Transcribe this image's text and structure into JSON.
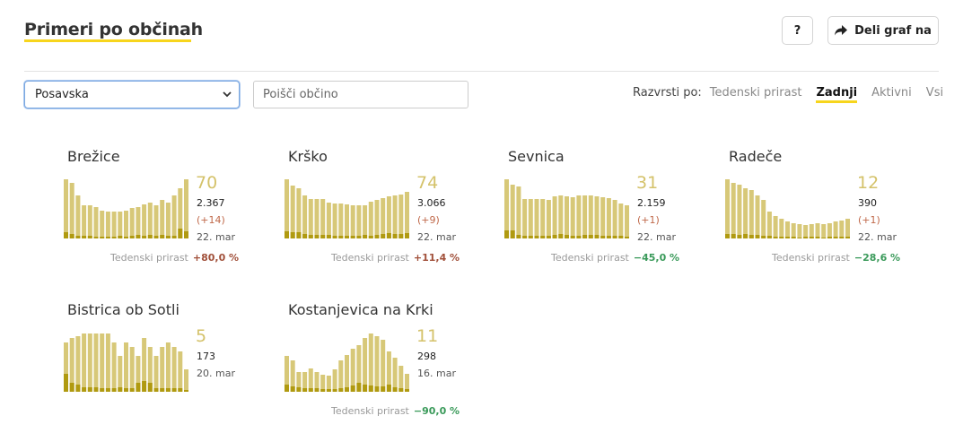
{
  "header": {
    "title": "Primeri po občinah",
    "help_label": "?",
    "share_label": "Deli graf na"
  },
  "filters": {
    "region_selected": "Posavska",
    "search_placeholder": "Poišči občino"
  },
  "sort": {
    "label": "Razvrsti po:",
    "options": [
      "Tedenski prirast",
      "Zadnji",
      "Aktivni",
      "Vsi"
    ],
    "active": "Zadnji"
  },
  "colors": {
    "bar": "#d7c878",
    "bar_dark": "#b09a10",
    "accent": "#f7d51d",
    "value": "#d4c26a",
    "up": "#a1503a",
    "down": "#3a9a5a"
  },
  "growth_label": "Tedenski prirast",
  "municipalities": [
    {
      "name": "Brežice",
      "value": "70",
      "total": "2.367",
      "delta": "(+14)",
      "date": "22. mar",
      "growth": "+80,0 %",
      "trend": "up",
      "bars": [
        66,
        62,
        48,
        37,
        37,
        35,
        31,
        30,
        30,
        30,
        31,
        34,
        35,
        38,
        40,
        37,
        43,
        40,
        48,
        56,
        66
      ],
      "dark": [
        7,
        5,
        3,
        3,
        3,
        2,
        2,
        2,
        2,
        3,
        2,
        3,
        4,
        3,
        4,
        3,
        4,
        3,
        3,
        11,
        8
      ]
    },
    {
      "name": "Krško",
      "value": "74",
      "total": "3.066",
      "delta": "(+9)",
      "date": "22. mar",
      "growth": "+11,4 %",
      "trend": "up",
      "bars": [
        66,
        59,
        56,
        48,
        44,
        44,
        44,
        40,
        39,
        39,
        38,
        37,
        37,
        37,
        41,
        43,
        45,
        47,
        48,
        49,
        52
      ],
      "dark": [
        8,
        7,
        7,
        5,
        4,
        4,
        4,
        4,
        3,
        3,
        3,
        3,
        3,
        4,
        3,
        4,
        5,
        6,
        5,
        5,
        6
      ]
    },
    {
      "name": "Sevnica",
      "value": "31",
      "total": "2.159",
      "delta": "(+1)",
      "date": "22. mar",
      "growth": "−45,0 %",
      "trend": "down",
      "bars": [
        66,
        60,
        58,
        44,
        44,
        44,
        44,
        43,
        47,
        48,
        47,
        46,
        48,
        48,
        48,
        47,
        46,
        45,
        43,
        39,
        37
      ],
      "dark": [
        9,
        9,
        4,
        3,
        3,
        3,
        3,
        3,
        4,
        5,
        4,
        3,
        3,
        4,
        4,
        4,
        3,
        3,
        3,
        3,
        2
      ]
    },
    {
      "name": "Radeče",
      "value": "12",
      "total": "390",
      "delta": "(+1)",
      "date": "22. mar",
      "growth": "−28,6 %",
      "trend": "down",
      "bars": [
        66,
        62,
        60,
        56,
        54,
        48,
        43,
        30,
        25,
        22,
        19,
        17,
        16,
        15,
        16,
        17,
        16,
        17,
        19,
        20,
        22
      ],
      "dark": [
        5,
        5,
        4,
        5,
        4,
        4,
        3,
        3,
        2,
        2,
        2,
        2,
        1,
        2,
        2,
        2,
        1,
        2,
        2,
        2,
        2
      ]
    },
    {
      "name": "Bistrica ob Sotli",
      "value": "5",
      "total": "173",
      "date": "20. mar",
      "growth": "",
      "trend": "",
      "bars": [
        55,
        60,
        62,
        65,
        65,
        65,
        65,
        65,
        55,
        40,
        55,
        50,
        40,
        60,
        50,
        40,
        50,
        55,
        50,
        45,
        25
      ],
      "dark": [
        20,
        10,
        8,
        5,
        5,
        5,
        4,
        4,
        4,
        5,
        4,
        4,
        10,
        12,
        10,
        4,
        4,
        4,
        4,
        4,
        2
      ]
    },
    {
      "name": "Kostanjevica na Krki",
      "value": "11",
      "total": "298",
      "date": "16. mar",
      "growth": "−90,0 %",
      "trend": "down",
      "bars": [
        40,
        35,
        22,
        22,
        26,
        22,
        19,
        18,
        25,
        35,
        41,
        48,
        52,
        60,
        65,
        62,
        58,
        45,
        38,
        29,
        20
      ],
      "dark": [
        8,
        6,
        5,
        4,
        4,
        4,
        3,
        3,
        3,
        4,
        5,
        7,
        10,
        8,
        7,
        6,
        6,
        8,
        5,
        4,
        3
      ]
    }
  ]
}
